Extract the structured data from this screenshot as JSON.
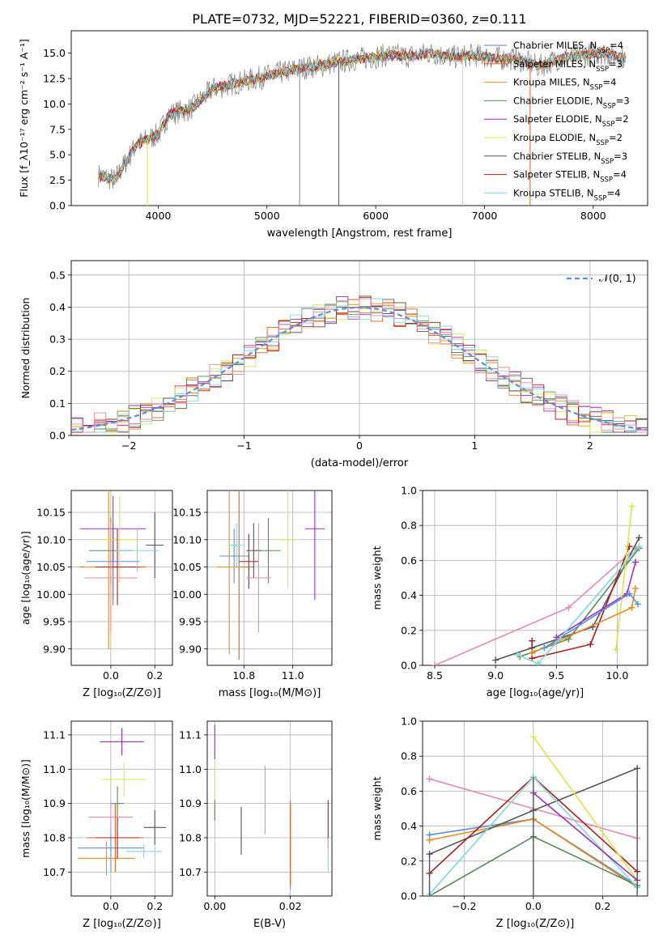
{
  "figure": {
    "title": "PLATE=0732, MJD=52221, FIBERID=0360, z=0.111"
  },
  "legend_items": [
    {
      "name": "Chabrier MILES",
      "nssp": "4",
      "color": "#5b7fcf"
    },
    {
      "name": "Salpeter MILES",
      "nssp": "3",
      "color": "#e35d1e"
    },
    {
      "name": "Kroupa MILES",
      "nssp": "4",
      "color": "#ea8a1e"
    },
    {
      "name": "Chabrier ELODIE",
      "nssp": "3",
      "color": "#5a8a5a"
    },
    {
      "name": "Salpeter ELODIE",
      "nssp": "2",
      "color": "#9b2fbf"
    },
    {
      "name": "Kroupa ELODIE",
      "nssp": "2",
      "color": "#d6e84a"
    },
    {
      "name": "Chabrier STELIB",
      "nssp": "3",
      "color": "#555555"
    },
    {
      "name": "Salpeter STELIB",
      "nssp": "4",
      "color": "#b31b1b"
    },
    {
      "name": "Kroupa STELIB",
      "nssp": "4",
      "color": "#7fd8dc"
    }
  ],
  "chart_data": [
    {
      "id": "spectrum",
      "type": "line",
      "title": "PLATE=0732, MJD=52221, FIBERID=0360, z=0.111",
      "xlabel": "wavelength [Angstrom, rest frame]",
      "ylabel": "Flux [f_λ 10^-17 erg cm^-2 s^-1 A^-1]",
      "xlim": [
        3200,
        8500
      ],
      "ylim": [
        0,
        17.2
      ],
      "xticks": [
        "4000",
        "5000",
        "6000",
        "7000",
        "8000"
      ],
      "yticks": [
        "0.0",
        "2.5",
        "5.0",
        "7.5",
        "10.0",
        "12.5",
        "15.0"
      ],
      "data_x": [
        3450,
        3600,
        3800,
        4000,
        4100,
        4300,
        4500,
        4700,
        4900,
        5100,
        5300,
        5500,
        5700,
        5900,
        6100,
        6300,
        6500,
        6700,
        6900,
        7100,
        7300,
        7500,
        7700,
        7900,
        8100,
        8300
      ],
      "data_y": [
        3.0,
        2.5,
        6.0,
        7.0,
        9.0,
        9.5,
        11.5,
        12.0,
        12.5,
        13.0,
        13.5,
        13.8,
        14.2,
        14.5,
        14.8,
        14.7,
        15.0,
        14.6,
        14.8,
        14.5,
        14.4,
        13.7,
        14.5,
        14.8,
        15.0,
        14.5
      ],
      "grid": false,
      "legend": "upper right"
    },
    {
      "id": "residuals",
      "type": "line",
      "xlabel": "(data-model)/error",
      "ylabel": "Normed distribution",
      "xlim": [
        -2.5,
        2.5
      ],
      "ylim": [
        0,
        0.545
      ],
      "xticks": [
        "-2",
        "-1",
        "0",
        "1",
        "2"
      ],
      "yticks": [
        "0.0",
        "0.1",
        "0.2",
        "0.3",
        "0.4",
        "0.5"
      ],
      "series_label": "𝒩(0, 1)",
      "grid": true,
      "legend": "upper right"
    },
    {
      "id": "age-vs-Z",
      "type": "scatter",
      "xlabel": "Z [log10(Z/Z⊙)]",
      "ylabel": "age  [log10(age/yr)]",
      "xlim": [
        -0.18,
        0.28
      ],
      "ylim": [
        9.87,
        10.19
      ],
      "xticks": [
        "0.0",
        "0.2"
      ],
      "yticks": [
        "9.90",
        "9.95",
        "10.00",
        "10.05",
        "10.10",
        "10.15"
      ],
      "points": [
        {
          "x": 0.01,
          "y": 10.06,
          "xerr": 0.12,
          "yerr": 0.07,
          "color": 0
        },
        {
          "x": 0.01,
          "y": 10.05,
          "xerr": 0.15,
          "yerr": 0.07,
          "color": 1
        },
        {
          "x": -0.01,
          "y": 10.05,
          "xerr": 0.11,
          "yerr": 0.15,
          "color": 2
        },
        {
          "x": 0.0,
          "y": 10.08,
          "xerr": 0.1,
          "yerr": 0.06,
          "color": 3
        },
        {
          "x": 0.01,
          "y": 10.12,
          "xerr": 0.15,
          "yerr": 0.06,
          "color": 4
        },
        {
          "x": 0.04,
          "y": 10.1,
          "xerr": 0.08,
          "yerr": 0.08,
          "color": 5
        },
        {
          "x": 0.2,
          "y": 10.09,
          "xerr": 0.04,
          "yerr": 0.06,
          "color": 6
        },
        {
          "x": 0.03,
          "y": 10.05,
          "xerr": 0.1,
          "yerr": 0.07,
          "color": 7
        },
        {
          "x": 0.12,
          "y": 10.08,
          "xerr": 0.1,
          "yerr": 0.04,
          "color": 8
        },
        {
          "x": 0.0,
          "y": 10.03,
          "xerr": 0.12,
          "yerr": 0.1,
          "color": 9
        }
      ]
    },
    {
      "id": "age-vs-mass",
      "type": "scatter",
      "xlabel": "mass [log10(M/M⊙)]",
      "xlim": [
        10.65,
        11.16
      ],
      "ylim": [
        9.87,
        10.19
      ],
      "xticks": [
        "10.8",
        "11.0"
      ],
      "yticks": [
        "9.90",
        "9.95",
        "10.00",
        "10.05",
        "10.10",
        "10.15"
      ],
      "points": [
        {
          "x": 10.76,
          "y": 10.07,
          "xerr": 0.06,
          "yerr": 0.05,
          "color": 0
        },
        {
          "x": 10.78,
          "y": 10.05,
          "xerr": 0.06,
          "yerr": 0.17,
          "color": 1
        },
        {
          "x": 10.74,
          "y": 10.05,
          "xerr": 0.05,
          "yerr": 0.16,
          "color": 2
        },
        {
          "x": 10.9,
          "y": 10.08,
          "xerr": 0.05,
          "yerr": 0.06,
          "color": 3
        },
        {
          "x": 11.09,
          "y": 10.12,
          "xerr": 0.04,
          "yerr": 0.13,
          "color": 4
        },
        {
          "x": 10.98,
          "y": 10.1,
          "xerr": 0.04,
          "yerr": 0.09,
          "color": 5
        },
        {
          "x": 10.84,
          "y": 10.08,
          "xerr": 0.03,
          "yerr": 0.05,
          "color": 6
        },
        {
          "x": 10.82,
          "y": 10.06,
          "xerr": 0.04,
          "yerr": 0.05,
          "color": 7
        },
        {
          "x": 10.77,
          "y": 10.09,
          "xerr": 0.03,
          "yerr": 0.04,
          "color": 8
        },
        {
          "x": 10.86,
          "y": 10.03,
          "xerr": 0.05,
          "yerr": 0.1,
          "color": 9
        }
      ]
    },
    {
      "id": "mass-weight-vs-age",
      "type": "line",
      "xlabel": "age  [log10(age/yr)]",
      "ylabel": "mass weight",
      "xlim": [
        8.4,
        10.25
      ],
      "ylim": [
        0,
        1.0
      ],
      "xticks": [
        "8.5",
        "9.0",
        "9.5",
        "10.0"
      ],
      "yticks": [
        "0.0",
        "0.2",
        "0.4",
        "0.6",
        "0.8",
        "1.0"
      ],
      "series": [
        {
          "color": 9,
          "x": [
            8.5,
            9.6,
            10.15
          ],
          "y": [
            0.0,
            0.33,
            0.67
          ]
        },
        {
          "color": 6,
          "x": [
            9.0,
            9.3,
            9.8,
            10.18
          ],
          "y": [
            0.03,
            0.1,
            0.22,
            0.73
          ]
        },
        {
          "color": 3,
          "x": [
            9.2,
            9.6,
            10.18
          ],
          "y": [
            0.05,
            0.15,
            0.67
          ]
        },
        {
          "color": 7,
          "x": [
            9.3,
            9.3,
            9.78,
            10.1
          ],
          "y": [
            0.14,
            0.04,
            0.12,
            0.68
          ]
        },
        {
          "color": 4,
          "x": [
            9.5,
            10.08,
            10.15
          ],
          "y": [
            0.16,
            0.41,
            0.59
          ]
        },
        {
          "color": 5,
          "x": [
            9.99,
            10.12
          ],
          "y": [
            0.09,
            0.91
          ]
        },
        {
          "color": 2,
          "x": [
            9.3,
            10.12,
            10.15
          ],
          "y": [
            0.07,
            0.33,
            0.44
          ]
        },
        {
          "color": 0,
          "x": [
            9.4,
            10.1,
            10.17
          ],
          "y": [
            0.1,
            0.41,
            0.35
          ]
        },
        {
          "color": 8,
          "x": [
            9.18,
            9.35,
            10.18
          ],
          "y": [
            0.06,
            0.01,
            0.68
          ]
        }
      ]
    },
    {
      "id": "mass-vs-Z",
      "type": "scatter",
      "xlabel": "Z [log10(Z/Z⊙)]",
      "ylabel": "mass [log10(M/M⊙)]",
      "xlim": [
        -0.18,
        0.28
      ],
      "ylim": [
        10.63,
        11.14
      ],
      "xticks": [
        "0.0",
        "0.2"
      ],
      "yticks": [
        "10.7",
        "10.8",
        "10.9",
        "11.0",
        "11.1"
      ],
      "points": [
        {
          "x": 0.0,
          "y": 10.77,
          "xerr": 0.15,
          "yerr": 0.07,
          "color": 0
        },
        {
          "x": -0.02,
          "y": 10.74,
          "xerr": 0.13,
          "yerr": 0.05,
          "color": 2
        },
        {
          "x": 0.02,
          "y": 10.8,
          "xerr": 0.13,
          "yerr": 0.1,
          "color": 1
        },
        {
          "x": 0.03,
          "y": 10.9,
          "xerr": 0.03,
          "yerr": 0.05,
          "color": 3
        },
        {
          "x": 0.05,
          "y": 11.08,
          "xerr": 0.1,
          "yerr": 0.04,
          "color": 4
        },
        {
          "x": 0.06,
          "y": 10.97,
          "xerr": 0.1,
          "yerr": 0.05,
          "color": 5
        },
        {
          "x": 0.2,
          "y": 10.83,
          "xerr": 0.05,
          "yerr": 0.05,
          "color": 6
        },
        {
          "x": 0.03,
          "y": 10.8,
          "xerr": 0.1,
          "yerr": 0.06,
          "color": 7
        },
        {
          "x": 0.15,
          "y": 10.76,
          "xerr": 0.08,
          "yerr": 0.02,
          "color": 8
        },
        {
          "x": 0.0,
          "y": 10.86,
          "xerr": 0.1,
          "yerr": 0.05,
          "color": 9
        }
      ]
    },
    {
      "id": "mass-vs-ebv",
      "type": "scatter",
      "xlabel": "E(B-V)",
      "xlim": [
        -0.002,
        0.031
      ],
      "ylim": [
        10.63,
        11.14
      ],
      "xticks": [
        "0.00",
        "0.02"
      ],
      "yticks": [
        "10.7",
        "10.8",
        "10.9",
        "11.0",
        "11.1"
      ],
      "points": [
        {
          "x": 0.02,
          "y": 10.78,
          "yerr": 0.13,
          "color": 0
        },
        {
          "x": 0.02,
          "y": 10.78,
          "yerr": 0.12,
          "color": 1
        },
        {
          "x": 0.0,
          "y": 10.95,
          "yerr": 0.1,
          "color": 5
        },
        {
          "x": 0.0,
          "y": 11.08,
          "yerr": 0.05,
          "color": 4
        },
        {
          "x": 0.0,
          "y": 10.88,
          "yerr": 0.03,
          "color": 3
        },
        {
          "x": 0.007,
          "y": 10.82,
          "yerr": 0.07,
          "color": 6
        },
        {
          "x": 0.0133,
          "y": 10.91,
          "yerr": 0.1,
          "color": 9
        },
        {
          "x": 0.03,
          "y": 10.84,
          "yerr": 0.07,
          "color": 7
        },
        {
          "x": 0.03,
          "y": 10.75,
          "yerr": 0.05,
          "color": 8
        }
      ]
    },
    {
      "id": "mass-weight-vs-Z",
      "type": "line",
      "xlabel": "Z [log10(Z/Z⊙)]",
      "ylabel": "mass weight",
      "xlim": [
        -0.32,
        0.33
      ],
      "ylim": [
        0,
        1.0
      ],
      "xticks": [
        "-0.2",
        "0.0",
        "0.2"
      ],
      "yticks": [
        "0.0",
        "0.2",
        "0.4",
        "0.6",
        "0.8",
        "1.0"
      ],
      "series": [
        {
          "color": 9,
          "x": [
            -0.3,
            0.3
          ],
          "y": [
            0.67,
            0.33
          ]
        },
        {
          "color": 0,
          "x": [
            -0.3,
            0.0,
            0.3
          ],
          "y": [
            0.35,
            0.44,
            0.06
          ]
        },
        {
          "color": 2,
          "x": [
            -0.3,
            0.0,
            0.3
          ],
          "y": [
            0.32,
            0.44,
            0.05
          ]
        },
        {
          "color": 6,
          "x": [
            -0.3,
            0.0,
            0.3
          ],
          "y": [
            0.24,
            0.49,
            0.73
          ]
        },
        {
          "color": 3,
          "x": [
            -0.3,
            0.0,
            0.3
          ],
          "y": [
            0.0,
            0.34,
            0.06
          ]
        },
        {
          "color": 7,
          "x": [
            -0.3,
            0.0,
            0.3
          ],
          "y": [
            0.13,
            0.68,
            0.14
          ]
        },
        {
          "color": 8,
          "x": [
            -0.3,
            0.0,
            0.3
          ],
          "y": [
            0.01,
            0.68,
            0.05
          ]
        },
        {
          "color": 5,
          "x": [
            0.0,
            0.3
          ],
          "y": [
            0.91,
            0.09
          ]
        },
        {
          "color": 4,
          "x": [
            0.0,
            0.3
          ],
          "y": [
            0.59,
            0.09
          ]
        }
      ]
    }
  ],
  "palette": [
    "#5b8fdc",
    "#e35d1e",
    "#ea8a1e",
    "#5a8a5a",
    "#9b2fbf",
    "#d6e84a",
    "#555555",
    "#b31b1b",
    "#7fd8dc",
    "#e58ab5"
  ]
}
